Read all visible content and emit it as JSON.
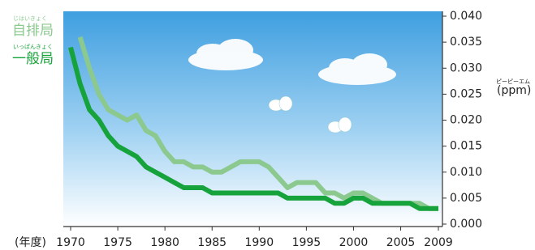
{
  "chart_data": {
    "type": "line",
    "x_label": "(年度)",
    "y_unit": "(ppm)",
    "y_unit_ruby": "ピーピーエム",
    "x": [
      1970,
      1971,
      1972,
      1973,
      1974,
      1975,
      1976,
      1977,
      1978,
      1979,
      1980,
      1981,
      1982,
      1983,
      1984,
      1985,
      1986,
      1987,
      1988,
      1989,
      1990,
      1991,
      1992,
      1993,
      1994,
      1995,
      1996,
      1997,
      1998,
      1999,
      2000,
      2001,
      2002,
      2003,
      2004,
      2005,
      2006,
      2007,
      2008,
      2009
    ],
    "series": [
      {
        "name": "自排局",
        "ruby": "じはいきょく",
        "color": "#8bc98e",
        "values": [
          null,
          0.036,
          0.03,
          0.025,
          0.022,
          0.021,
          0.02,
          0.021,
          0.018,
          0.017,
          0.014,
          0.012,
          0.012,
          0.011,
          0.011,
          0.01,
          0.01,
          0.011,
          0.012,
          0.012,
          0.012,
          0.011,
          0.009,
          0.007,
          0.008,
          0.008,
          0.008,
          0.006,
          0.006,
          0.005,
          0.006,
          0.006,
          0.005,
          0.004,
          0.004,
          0.004,
          0.004,
          0.004,
          0.003,
          0.003
        ]
      },
      {
        "name": "一般局",
        "ruby": "いっぱんきょく",
        "color": "#17a33c",
        "values": [
          0.034,
          0.027,
          0.022,
          0.02,
          0.017,
          0.015,
          0.014,
          0.013,
          0.011,
          0.01,
          0.009,
          0.008,
          0.007,
          0.007,
          0.007,
          0.006,
          0.006,
          0.006,
          0.006,
          0.006,
          0.006,
          0.006,
          0.006,
          0.005,
          0.005,
          0.005,
          0.005,
          0.005,
          0.004,
          0.004,
          0.005,
          0.005,
          0.004,
          0.004,
          0.004,
          0.004,
          0.004,
          0.003,
          0.003,
          0.003
        ]
      }
    ],
    "xlim": [
      1970,
      2009
    ],
    "xticks": [
      1970,
      1975,
      1980,
      1985,
      1990,
      1995,
      2000,
      2005,
      2009
    ],
    "ylim": [
      0,
      0.04
    ],
    "yticks": [
      {
        "value": 0,
        "label": "0.000"
      },
      {
        "value": 0.005,
        "label": "0.005"
      },
      {
        "value": 0.01,
        "label": "0.010"
      },
      {
        "value": 0.015,
        "label": "0.015"
      },
      {
        "value": 0.02,
        "label": "0.020"
      },
      {
        "value": 0.025,
        "label": "0.025"
      },
      {
        "value": 0.03,
        "label": "0.030"
      },
      {
        "value": 0.035,
        "label": "0.035"
      },
      {
        "value": 0.04,
        "label": "0.040"
      }
    ]
  }
}
